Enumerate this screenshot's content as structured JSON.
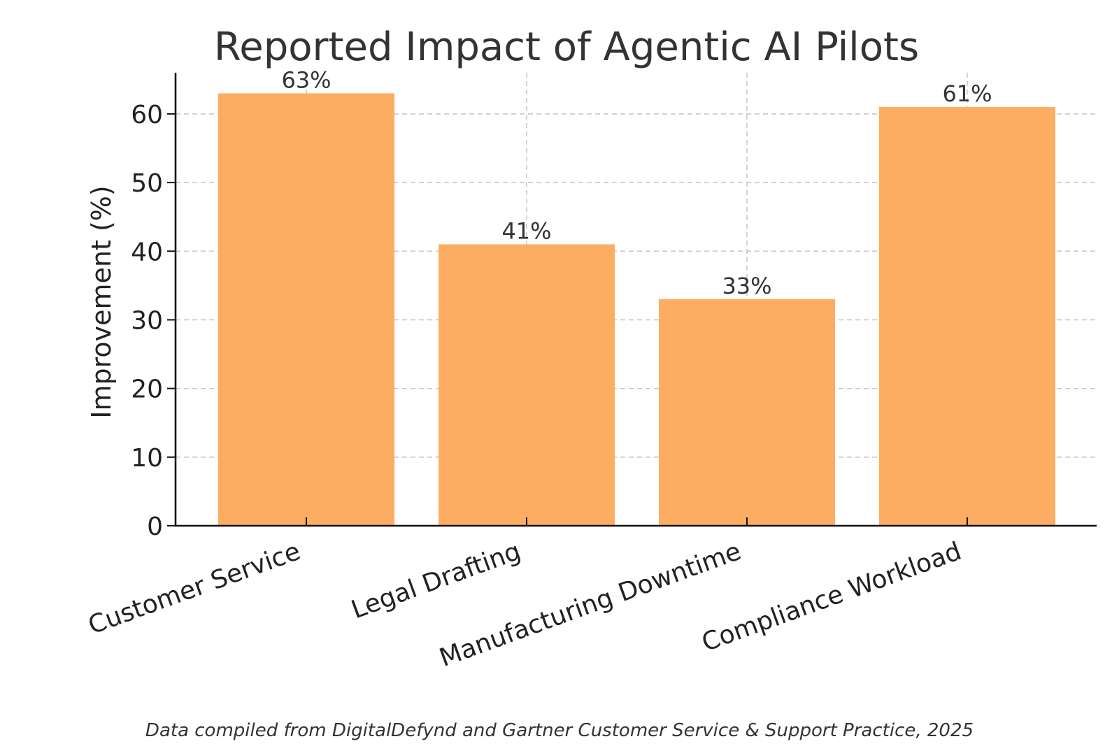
{
  "chart_data": {
    "type": "bar",
    "title": "Reported Impact of Agentic AI Pilots",
    "xlabel": "",
    "ylabel": "Improvement (%)",
    "categories": [
      "Customer Service",
      "Legal Drafting",
      "Manufacturing Downtime",
      "Compliance Workload"
    ],
    "values": [
      63,
      41,
      33,
      61
    ],
    "value_labels": [
      "63%",
      "41%",
      "33%",
      "61%"
    ],
    "ylim": [
      0,
      66
    ],
    "yticks": [
      0,
      10,
      20,
      30,
      40,
      50,
      60
    ],
    "grid": true,
    "bar_color": "#fcad62",
    "source_note": "Data compiled from DigitalDefynd and Gartner Customer Service & Support Practice, 2025"
  }
}
